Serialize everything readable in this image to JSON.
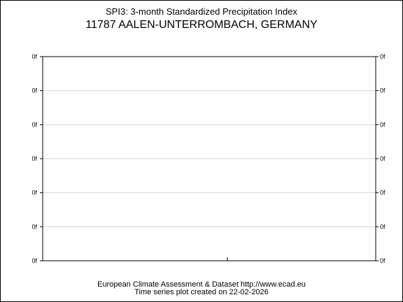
{
  "header": {
    "title": "SPI3: 3-month Standardized Precipitation Index",
    "subtitle": "11787 AALEN-UNTERROMBACH, GERMANY"
  },
  "chart_data": {
    "type": "line",
    "title": "SPI3: 3-month Standardized Precipitation Index",
    "subtitle": "11787 AALEN-UNTERROMBACH, GERMANY",
    "xlabel": "",
    "ylabel": "",
    "x_tick_labels": [],
    "y_tick_labels_left": [
      "0f",
      "0f",
      "0f",
      "0f",
      "0f",
      "0f",
      "0f"
    ],
    "y_tick_labels_right": [
      "0f",
      "0f",
      "0f",
      "0f",
      "0f",
      "0f",
      "0f"
    ],
    "series": [],
    "grid": true,
    "grid_color": "#d3d3d3",
    "axis_color": "#000000"
  },
  "footer": {
    "line1": "European Climate Assessment & Dataset  http://www.ecad.eu",
    "line2": "Time series plot created on 22-02-2026"
  }
}
